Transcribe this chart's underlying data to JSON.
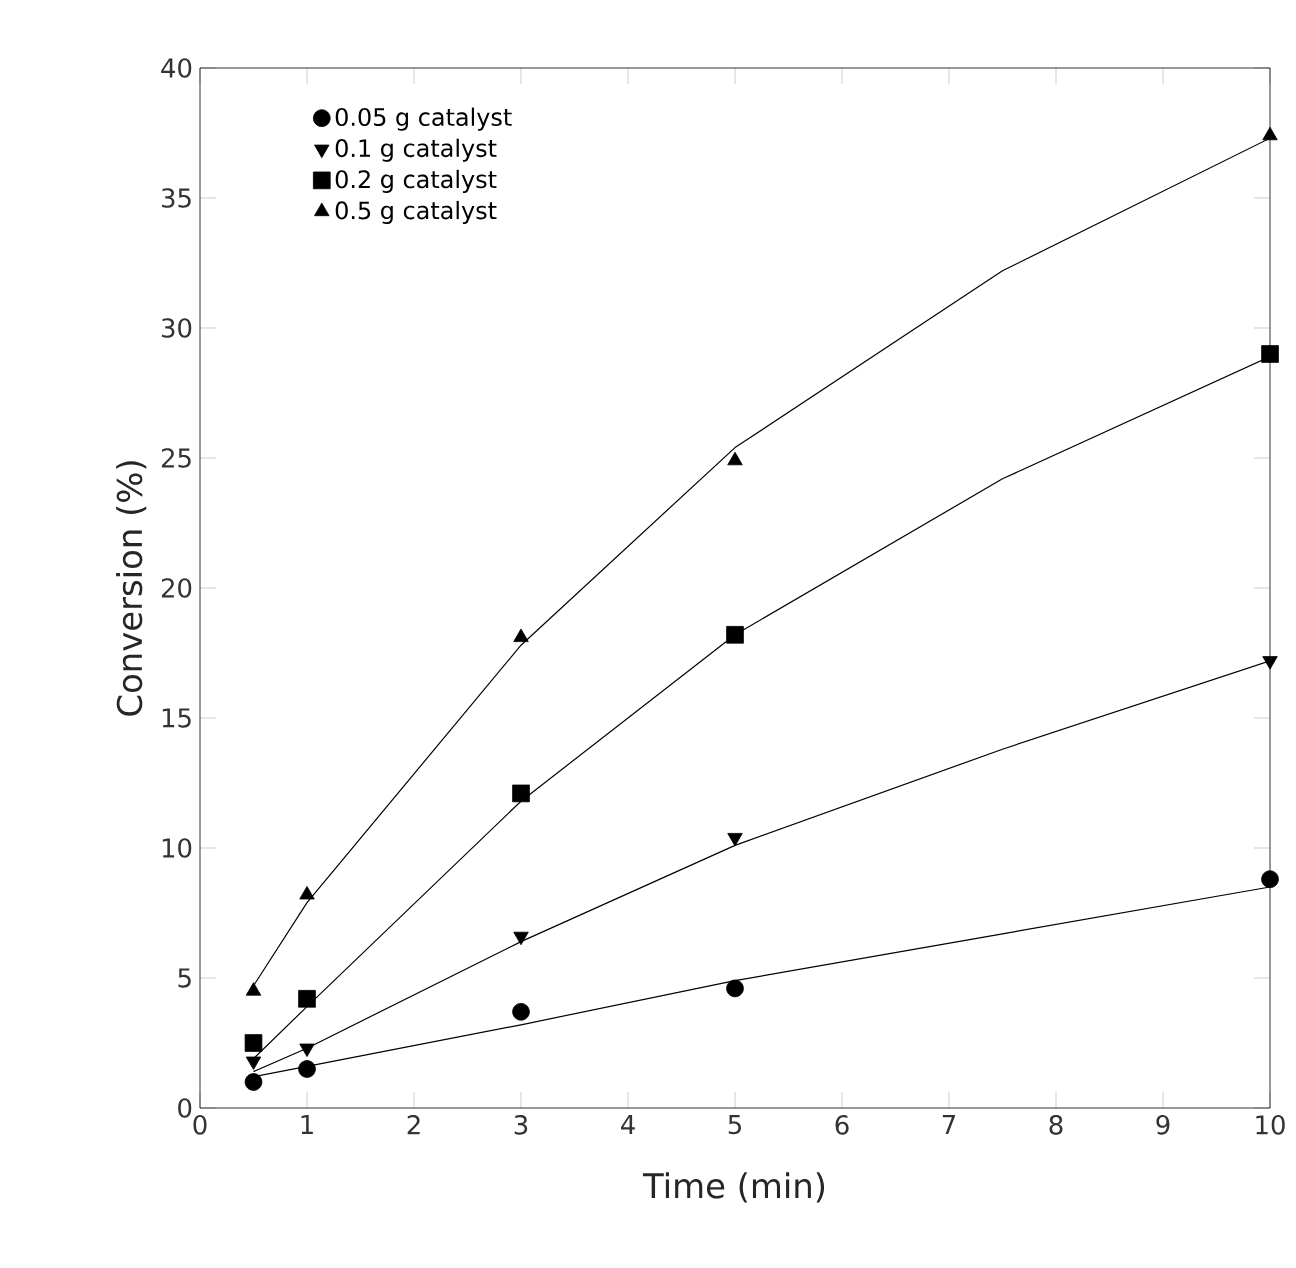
{
  "chart_data": {
    "type": "scatter",
    "xlabel": "Time (min)",
    "ylabel": "Conversion (%)",
    "xlim": [
      0,
      10
    ],
    "ylim": [
      0,
      40
    ],
    "xticks": [
      0,
      1,
      2,
      3,
      4,
      5,
      6,
      7,
      8,
      9,
      10
    ],
    "yticks": [
      0,
      5,
      10,
      15,
      20,
      25,
      30,
      35,
      40
    ],
    "grid": false,
    "legend": "top left",
    "series": [
      {
        "name": "0.05 g catalyst",
        "marker": "circle",
        "color": "#000000",
        "x": [
          0.5,
          1,
          3,
          5,
          10
        ],
        "values": [
          1.0,
          1.5,
          3.7,
          4.6,
          8.8
        ]
      },
      {
        "name": "0.1   g catalyst",
        "marker": "triangle-down",
        "color": "#000000",
        "x": [
          0.5,
          1,
          3,
          5,
          10
        ],
        "values": [
          1.8,
          2.3,
          6.6,
          10.4,
          17.2
        ]
      },
      {
        "name": "0.2   g catalyst",
        "marker": "square",
        "color": "#000000",
        "x": [
          0.5,
          1,
          3,
          5,
          10
        ],
        "values": [
          2.5,
          4.2,
          12.1,
          18.2,
          29.0
        ]
      },
      {
        "name": "0.5   g catalyst",
        "marker": "triangle",
        "color": "#000000",
        "x": [
          0.5,
          1,
          3,
          5,
          10
        ],
        "values": [
          4.5,
          8.2,
          18.1,
          24.9,
          37.4
        ]
      },
      {
        "type": "line",
        "marker": "none",
        "line_style": "solid",
        "color": "#000000",
        "x": [
          0.5,
          1,
          3,
          5,
          7.5,
          10
        ],
        "values": [
          1.2,
          1.6,
          3.2,
          4.9,
          6.7,
          8.5
        ]
      },
      {
        "type": "line",
        "marker": "none",
        "line_style": "solid",
        "color": "#000000",
        "x": [
          0.5,
          1,
          3,
          5,
          7.5,
          10
        ],
        "values": [
          1.4,
          2.3,
          6.4,
          10.1,
          13.8,
          17.2
        ]
      },
      {
        "type": "line",
        "marker": "none",
        "line_style": "solid",
        "color": "#000000",
        "x": [
          0.5,
          1,
          3,
          5,
          7.5,
          10
        ],
        "values": [
          1.9,
          3.9,
          11.8,
          18.2,
          24.2,
          28.9
        ]
      },
      {
        "type": "line",
        "marker": "none",
        "line_style": "solid",
        "color": "#000000",
        "x": [
          0.5,
          1,
          3,
          5,
          7.5,
          10
        ],
        "values": [
          4.7,
          7.9,
          17.8,
          25.4,
          32.2,
          37.3
        ]
      }
    ]
  }
}
